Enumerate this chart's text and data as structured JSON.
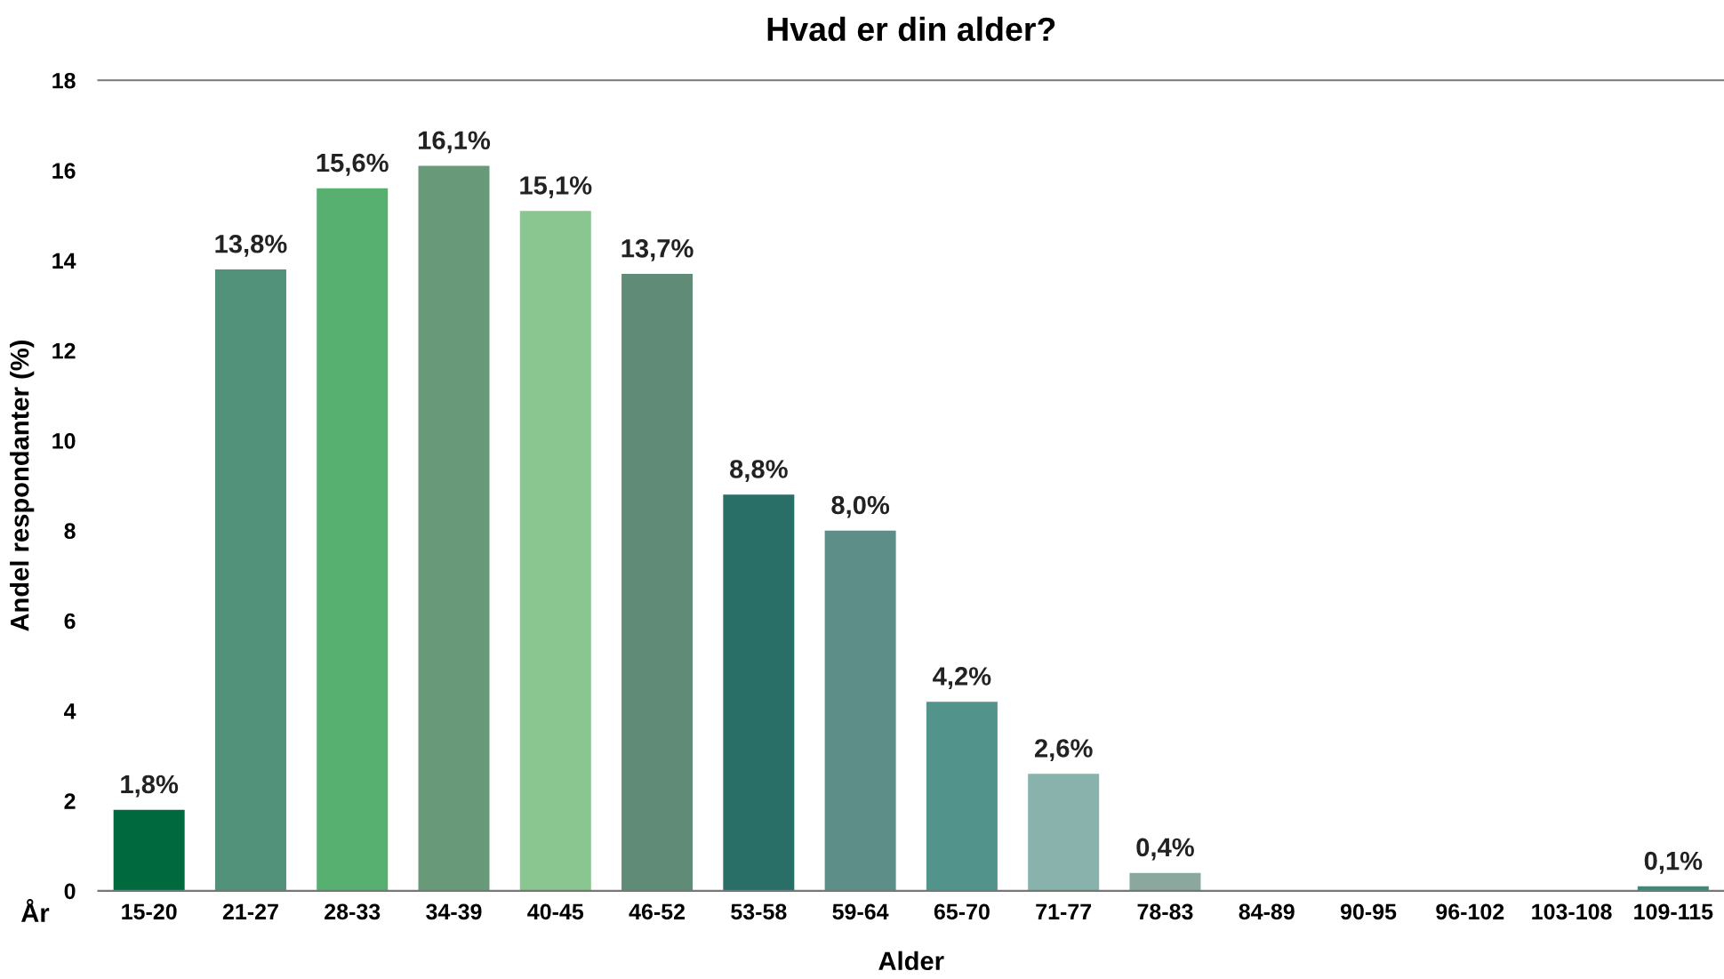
{
  "chart_data": {
    "type": "bar",
    "title": "Hvad er din alder?",
    "xlabel": "Alder",
    "ylabel": "Andel respondanter (%)",
    "categories": [
      "15-20",
      "21-27",
      "28-33",
      "34-39",
      "40-45",
      "46-52",
      "53-58",
      "59-64",
      "65-70",
      "71-77",
      "78-83",
      "84-89",
      "90-95",
      "96-102",
      "103-108",
      "109-115"
    ],
    "values": [
      1.8,
      13.8,
      15.6,
      16.1,
      15.1,
      13.7,
      8.8,
      8.0,
      4.2,
      2.6,
      0.4,
      null,
      null,
      null,
      null,
      0.1
    ],
    "value_labels": [
      "1,8%",
      "13,8%",
      "15,6%",
      "16,1%",
      "15,1%",
      "13,7%",
      "8,8%",
      "8,0%",
      "4,2%",
      "2,6%",
      "0,4%",
      null,
      null,
      null,
      null,
      "0,1%"
    ],
    "colors": [
      "#00693e",
      "#52917a",
      "#57b06f",
      "#689a79",
      "#8ac68f",
      "#5f8b77",
      "#2a6e68",
      "#5e8e88",
      "#52948c",
      "#8ab2ad",
      "#8aa89d",
      "#888888",
      "#888888",
      "#888888",
      "#888888",
      "#3a8a7a"
    ],
    "ylim": [
      0,
      18
    ],
    "yticks": [
      0,
      2,
      4,
      6,
      8,
      10,
      12,
      14,
      16,
      18
    ],
    "annotations": [
      "År"
    ],
    "grid": false,
    "legend": false
  }
}
